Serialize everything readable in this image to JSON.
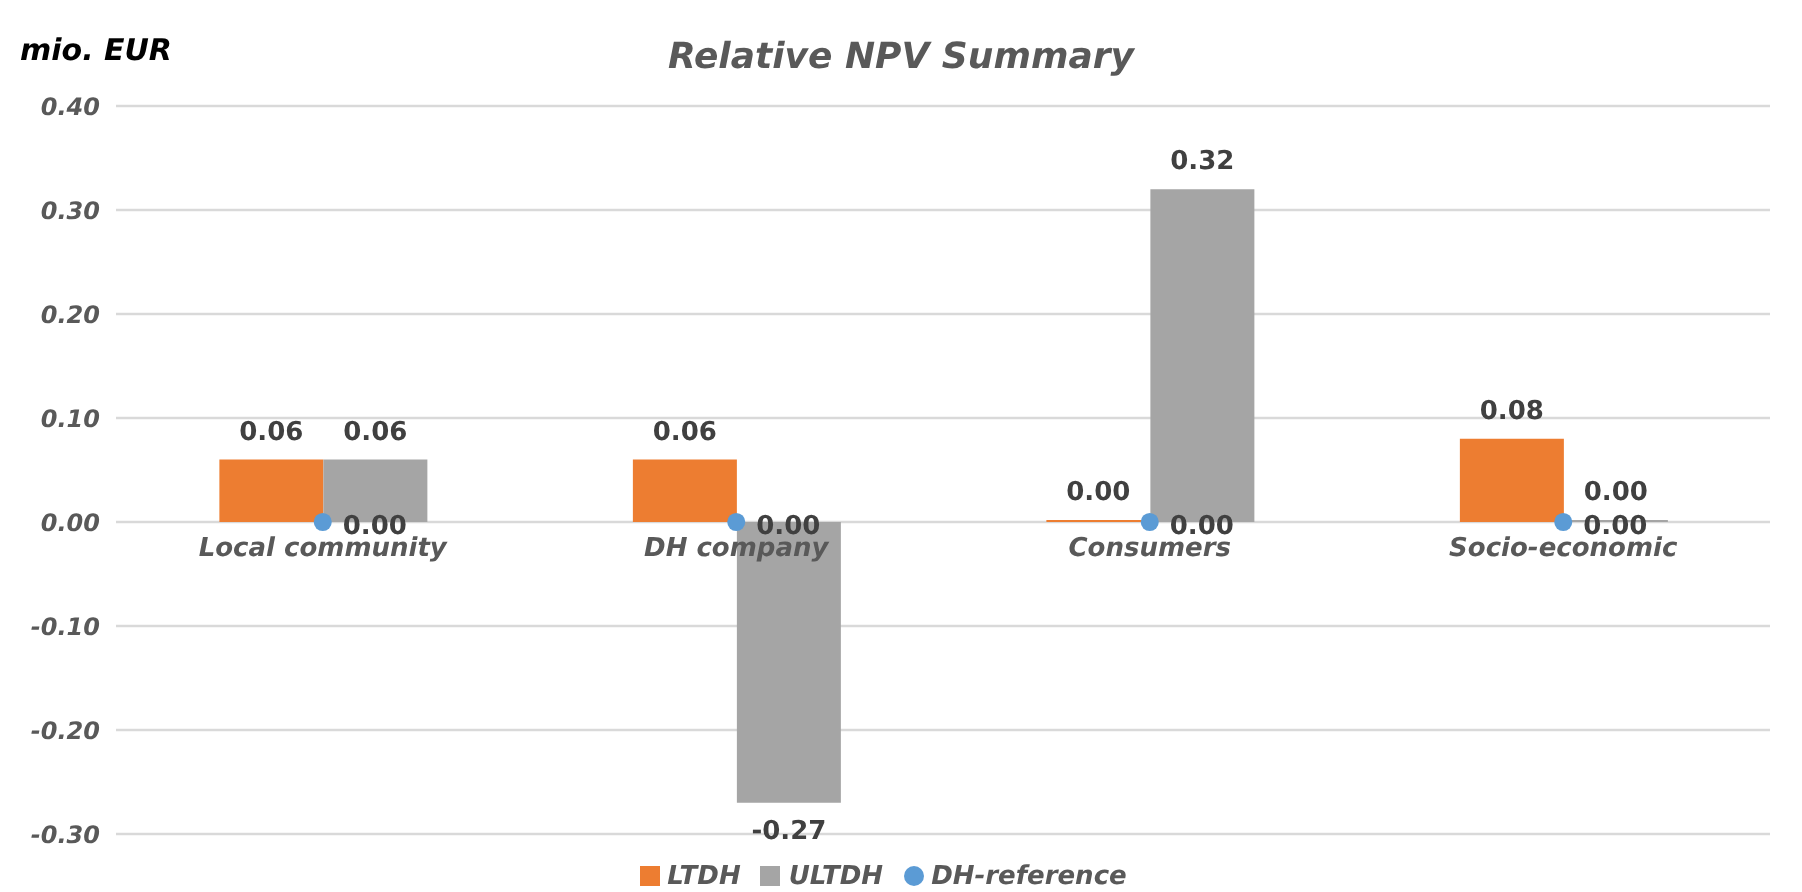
{
  "chart_data": {
    "type": "bar",
    "title": "Relative NPV Summary",
    "ylabel": "mio. EUR",
    "categories": [
      "Local community",
      "DH company",
      "Consumers",
      "Socio-economic"
    ],
    "series": [
      {
        "name": "LTDH",
        "color": "#ed7d31",
        "values": [
          0.06,
          0.06,
          0.0,
          0.08
        ],
        "value_labels": [
          "0.06",
          "0.06",
          "0.00",
          "0.08"
        ]
      },
      {
        "name": "ULTDH",
        "color": "#a5a5a5",
        "values": [
          0.06,
          -0.27,
          0.32,
          0.0
        ],
        "value_labels": [
          "0.06",
          "-0.27",
          "0.32",
          "0.00"
        ]
      },
      {
        "name": "DH-reference",
        "type": "scatter",
        "color": "#5b9bd5",
        "values": [
          0,
          0,
          0,
          0
        ],
        "value_labels": [
          "0.00",
          "0.00",
          "0.00",
          "0.00"
        ]
      }
    ],
    "ylim": [
      -0.3,
      0.4
    ],
    "yticks": [
      {
        "value": -0.3,
        "label": "-0.30"
      },
      {
        "value": -0.2,
        "label": "-0.20"
      },
      {
        "value": -0.1,
        "label": "-0.10"
      },
      {
        "value": 0,
        "label": "0.00"
      },
      {
        "value": 0.1,
        "label": "0.10"
      },
      {
        "value": 0.2,
        "label": "0.20"
      },
      {
        "value": 0.3,
        "label": "0.30"
      },
      {
        "value": 0.4,
        "label": "0.40"
      }
    ],
    "grid": "y",
    "legend": "bottom",
    "marker": "circle"
  }
}
